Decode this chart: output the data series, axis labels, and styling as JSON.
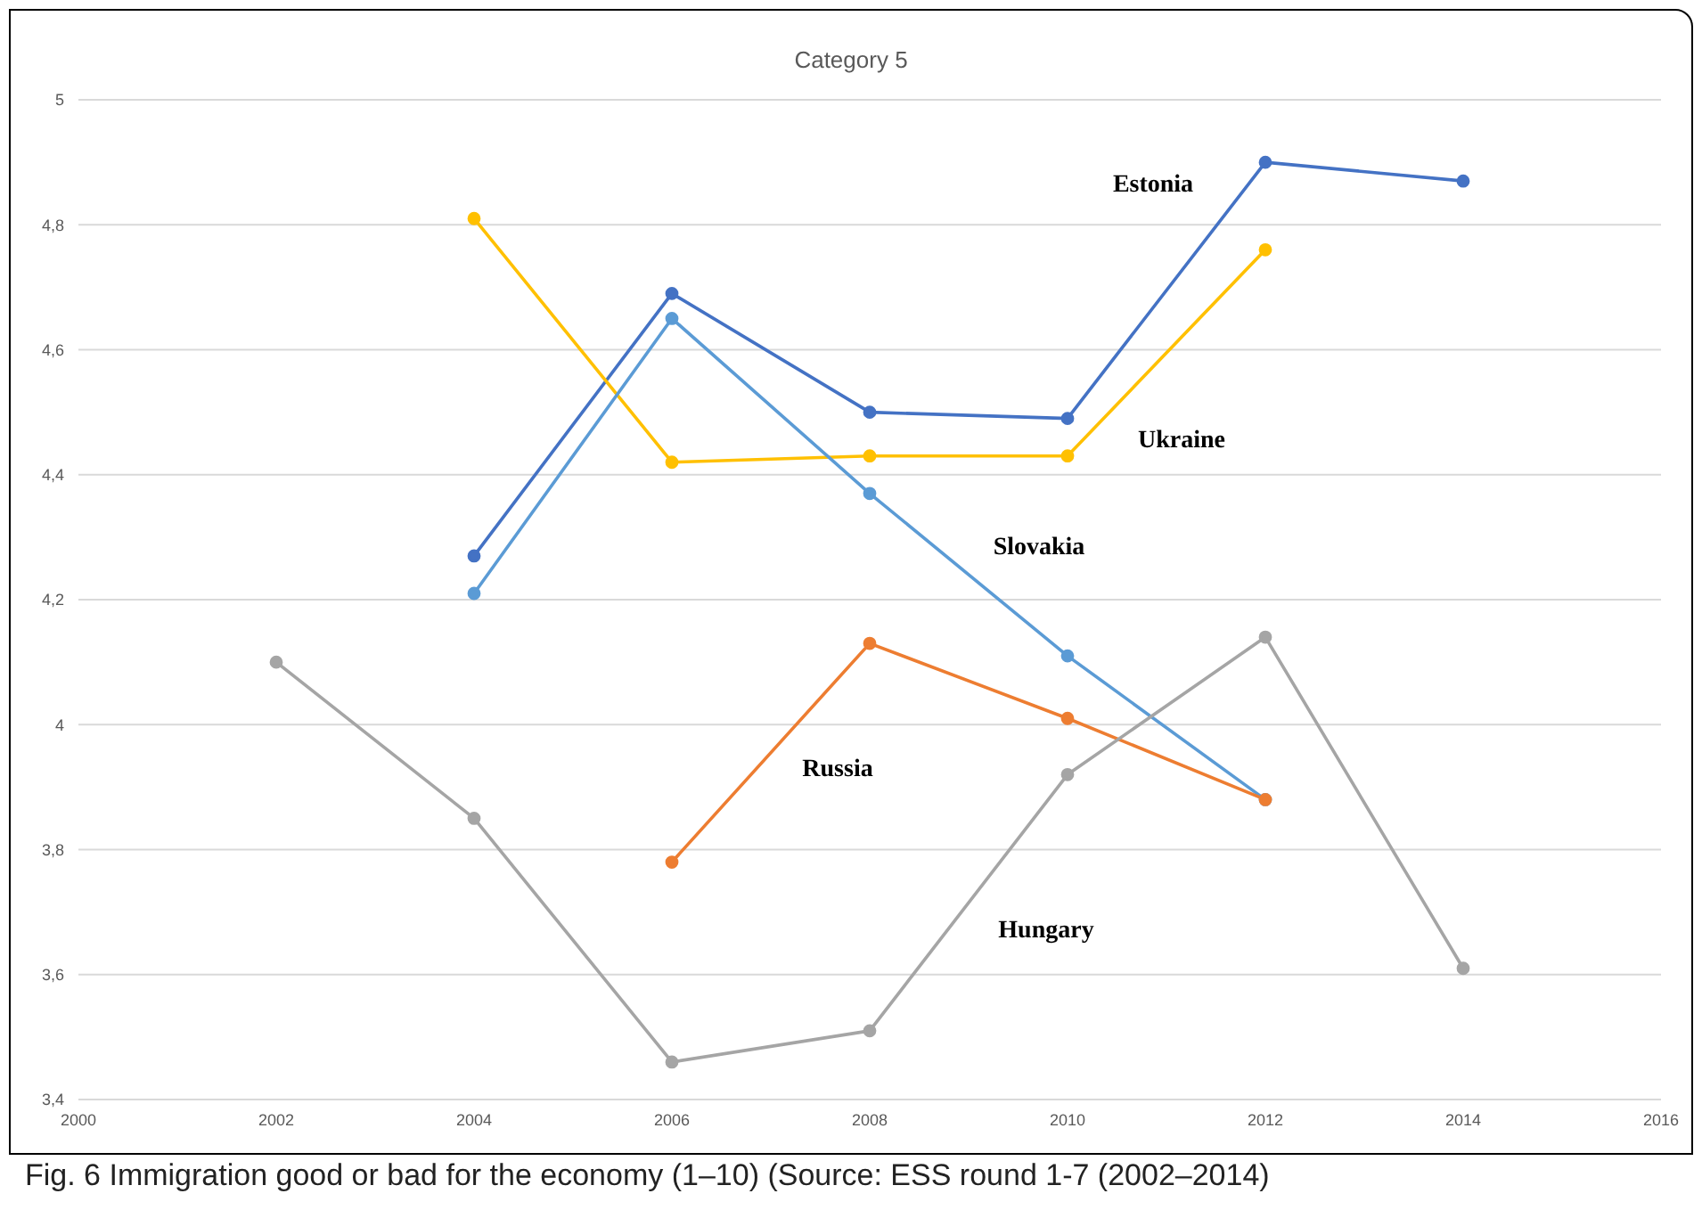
{
  "chart_data": {
    "type": "line",
    "title": "Category 5",
    "x": [
      2002,
      2004,
      2006,
      2008,
      2010,
      2012,
      2014
    ],
    "series": [
      {
        "name": "Estonia",
        "color": "#4472c4",
        "values": [
          null,
          4.27,
          4.69,
          4.5,
          4.49,
          4.9,
          4.87
        ]
      },
      {
        "name": "Ukraine",
        "color": "#ffc000",
        "values": [
          null,
          4.81,
          4.42,
          4.43,
          4.43,
          4.76,
          null
        ]
      },
      {
        "name": "Slovakia",
        "color": "#5b9bd5",
        "values": [
          null,
          4.21,
          4.65,
          4.37,
          4.11,
          3.88,
          null
        ]
      },
      {
        "name": "Russia",
        "color": "#ed7d31",
        "values": [
          null,
          null,
          3.78,
          4.13,
          4.01,
          3.88,
          null
        ]
      },
      {
        "name": "Hungary",
        "color": "#a5a5a5",
        "values": [
          4.1,
          3.85,
          3.46,
          3.51,
          3.92,
          4.14,
          3.61
        ]
      }
    ],
    "xlim": [
      2000,
      2016
    ],
    "xticks": [
      2000,
      2002,
      2004,
      2006,
      2008,
      2010,
      2012,
      2014,
      2016
    ],
    "ylim": [
      3.4,
      5
    ],
    "yticks": [
      {
        "value": 3.4,
        "label": "3,4"
      },
      {
        "value": 3.6,
        "label": "3,6"
      },
      {
        "value": 3.8,
        "label": "3,8"
      },
      {
        "value": 4,
        "label": "4"
      },
      {
        "value": 4.2,
        "label": "4,2"
      },
      {
        "value": 4.4,
        "label": "4,4"
      },
      {
        "value": 4.6,
        "label": "4,6"
      },
      {
        "value": 4.8,
        "label": "4,8"
      },
      {
        "value": 5,
        "label": "5"
      }
    ],
    "grid": "y",
    "marker": "circle",
    "line_style": "solid",
    "annotations": [
      "Fig. 6 Immigration good or bad for the economy (1–10) (Source: ESS round 1-7 (2002–2014)"
    ]
  }
}
